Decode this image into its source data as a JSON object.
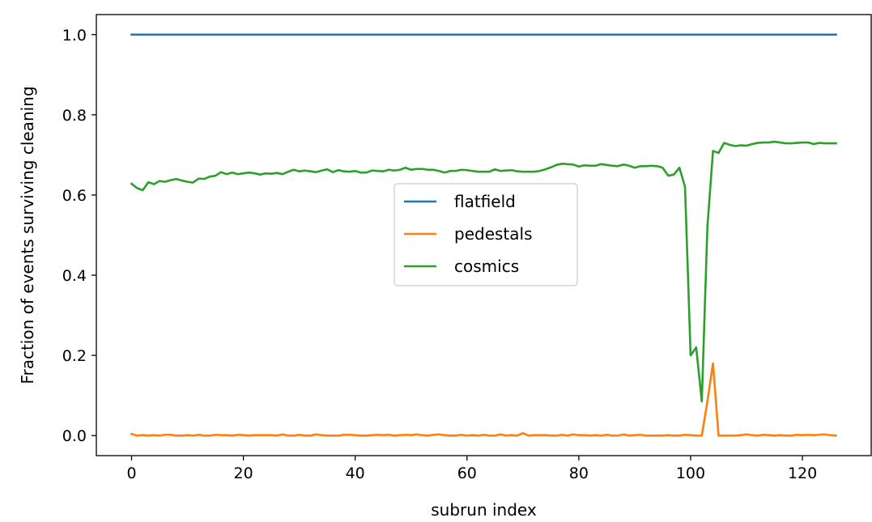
{
  "chart_data": {
    "type": "line",
    "xlabel": "subrun index",
    "ylabel": "Fraction of events surviving cleaning",
    "xlim": [
      -6.3,
      132.3
    ],
    "ylim": [
      -0.05,
      1.05
    ],
    "xticks": [
      0,
      20,
      40,
      60,
      80,
      100,
      120
    ],
    "yticks": [
      0.0,
      0.2,
      0.4,
      0.6,
      0.8,
      1.0
    ],
    "ytick_labels": [
      "0.0",
      "0.2",
      "0.4",
      "0.6",
      "0.8",
      "1.0"
    ],
    "legend": "center",
    "grid": false,
    "series": [
      {
        "name": "flatfield",
        "color": "#1f77b4",
        "x": [
          0,
          126
        ],
        "y": [
          1.0,
          1.0
        ]
      },
      {
        "name": "pedestals",
        "color": "#ff7f0e",
        "x": [
          0,
          1,
          2,
          3,
          4,
          5,
          6,
          7,
          8,
          9,
          10,
          11,
          12,
          13,
          14,
          15,
          16,
          17,
          18,
          19,
          20,
          21,
          22,
          23,
          24,
          25,
          26,
          27,
          28,
          29,
          30,
          31,
          32,
          33,
          34,
          35,
          36,
          37,
          38,
          39,
          40,
          41,
          42,
          43,
          44,
          45,
          46,
          47,
          48,
          49,
          50,
          51,
          52,
          53,
          54,
          55,
          56,
          57,
          58,
          59,
          60,
          61,
          62,
          63,
          64,
          65,
          66,
          67,
          68,
          69,
          70,
          71,
          72,
          73,
          74,
          75,
          76,
          77,
          78,
          79,
          80,
          81,
          82,
          83,
          84,
          85,
          86,
          87,
          88,
          89,
          90,
          91,
          92,
          93,
          94,
          95,
          96,
          97,
          98,
          99,
          100,
          101,
          102,
          103,
          104,
          105,
          106,
          107,
          108,
          109,
          110,
          111,
          112,
          113,
          114,
          115,
          116,
          117,
          118,
          119,
          120,
          121,
          122,
          123,
          124,
          125,
          126
        ],
        "y": [
          0.004,
          0.0,
          0.001,
          0.0,
          0.001,
          0.0,
          0.002,
          0.002,
          0.0,
          0.0,
          0.001,
          0.0,
          0.002,
          0.0,
          0.0,
          0.002,
          0.001,
          0.001,
          0.0,
          0.002,
          0.001,
          0.0,
          0.001,
          0.001,
          0.001,
          0.001,
          0.0,
          0.003,
          0.0,
          0.0,
          0.002,
          0.0,
          0.0,
          0.003,
          0.001,
          0.0,
          0.0,
          0.0,
          0.002,
          0.002,
          0.001,
          0.0,
          0.0,
          0.001,
          0.002,
          0.001,
          0.002,
          0.0,
          0.001,
          0.002,
          0.001,
          0.003,
          0.001,
          0.0,
          0.002,
          0.003,
          0.001,
          0.0,
          0.0,
          0.002,
          0.0,
          0.001,
          0.0,
          0.002,
          0.0,
          0.0,
          0.003,
          0.0,
          0.001,
          0.0,
          0.006,
          0.0,
          0.001,
          0.001,
          0.001,
          0.0,
          0.0,
          0.002,
          0.0,
          0.003,
          0.001,
          0.001,
          0.0,
          0.001,
          0.0,
          0.002,
          0.0,
          0.0,
          0.003,
          0.0,
          0.001,
          0.002,
          0.0,
          0.0,
          0.0,
          0.0,
          0.001,
          0.0,
          0.0,
          0.002,
          0.001,
          0.0,
          0.0,
          0.085,
          0.18,
          0.0,
          0.0,
          0.0,
          0.0,
          0.001,
          0.003,
          0.001,
          0.0,
          0.002,
          0.001,
          0.0,
          0.001,
          0.0,
          0.0,
          0.002,
          0.001,
          0.002,
          0.001,
          0.002,
          0.003,
          0.001,
          0.0
        ]
      },
      {
        "name": "cosmics",
        "color": "#2ca02c",
        "x": [
          0,
          1,
          2,
          3,
          4,
          5,
          6,
          7,
          8,
          9,
          10,
          11,
          12,
          13,
          14,
          15,
          16,
          17,
          18,
          19,
          20,
          21,
          22,
          23,
          24,
          25,
          26,
          27,
          28,
          29,
          30,
          31,
          32,
          33,
          34,
          35,
          36,
          37,
          38,
          39,
          40,
          41,
          42,
          43,
          44,
          45,
          46,
          47,
          48,
          49,
          50,
          51,
          52,
          53,
          54,
          55,
          56,
          57,
          58,
          59,
          60,
          61,
          62,
          63,
          64,
          65,
          66,
          67,
          68,
          69,
          70,
          71,
          72,
          73,
          74,
          75,
          76,
          77,
          78,
          79,
          80,
          81,
          82,
          83,
          84,
          85,
          86,
          87,
          88,
          89,
          90,
          91,
          92,
          93,
          94,
          95,
          96,
          97,
          98,
          99,
          100,
          101,
          102,
          103,
          104,
          105,
          106,
          107,
          108,
          109,
          110,
          111,
          112,
          113,
          114,
          115,
          116,
          117,
          118,
          119,
          120,
          121,
          122,
          123,
          124,
          125,
          126
        ],
        "y": [
          0.628,
          0.617,
          0.612,
          0.632,
          0.627,
          0.635,
          0.633,
          0.637,
          0.64,
          0.636,
          0.633,
          0.631,
          0.641,
          0.64,
          0.646,
          0.648,
          0.657,
          0.652,
          0.656,
          0.652,
          0.654,
          0.656,
          0.654,
          0.651,
          0.654,
          0.653,
          0.655,
          0.652,
          0.658,
          0.663,
          0.659,
          0.661,
          0.659,
          0.657,
          0.661,
          0.664,
          0.657,
          0.662,
          0.659,
          0.658,
          0.66,
          0.656,
          0.656,
          0.661,
          0.66,
          0.659,
          0.663,
          0.661,
          0.663,
          0.668,
          0.663,
          0.665,
          0.665,
          0.663,
          0.663,
          0.66,
          0.656,
          0.66,
          0.66,
          0.663,
          0.662,
          0.66,
          0.658,
          0.658,
          0.658,
          0.664,
          0.66,
          0.661,
          0.662,
          0.659,
          0.658,
          0.658,
          0.658,
          0.66,
          0.664,
          0.669,
          0.675,
          0.678,
          0.677,
          0.676,
          0.671,
          0.674,
          0.673,
          0.673,
          0.677,
          0.675,
          0.673,
          0.672,
          0.676,
          0.673,
          0.668,
          0.672,
          0.672,
          0.673,
          0.672,
          0.668,
          0.648,
          0.651,
          0.668,
          0.62,
          0.2,
          0.22,
          0.085,
          0.52,
          0.71,
          0.705,
          0.73,
          0.725,
          0.722,
          0.724,
          0.723,
          0.727,
          0.73,
          0.731,
          0.731,
          0.733,
          0.731,
          0.729,
          0.729,
          0.73,
          0.731,
          0.731,
          0.727,
          0.73,
          0.729,
          0.729,
          0.729
        ]
      }
    ]
  }
}
